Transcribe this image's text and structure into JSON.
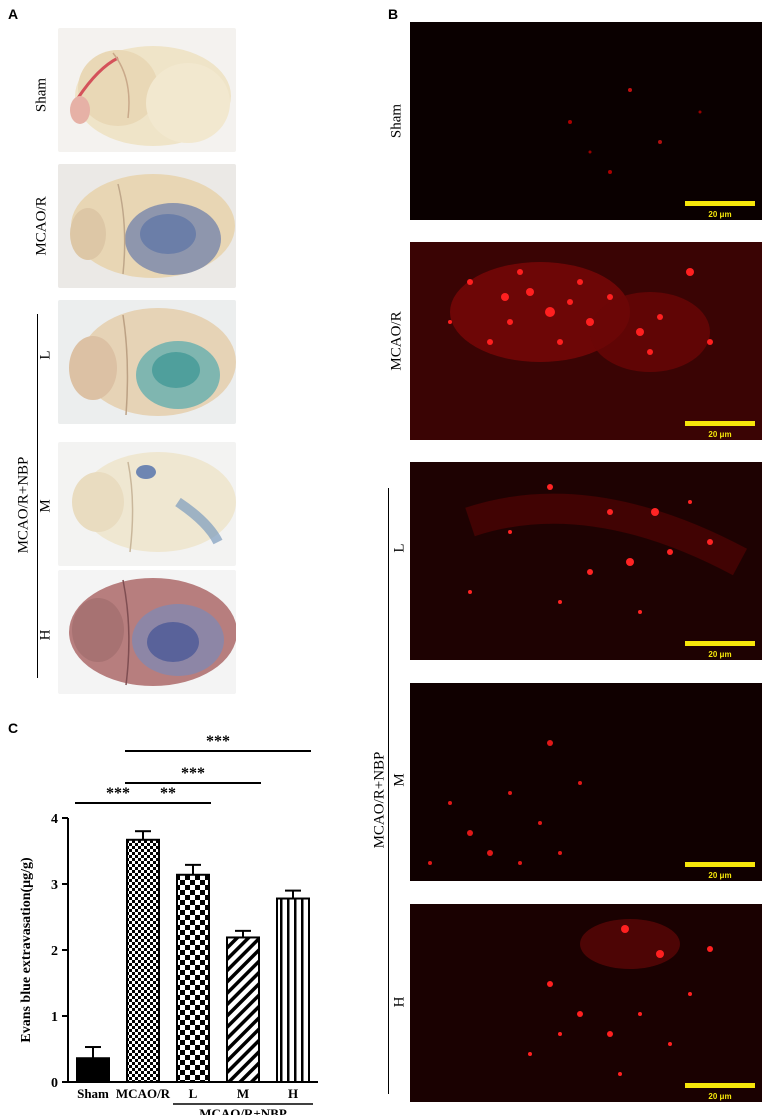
{
  "panels": {
    "a": "A",
    "b": "B",
    "c": "C"
  },
  "panel_a": {
    "rows": [
      "Sham",
      "MCAO/R",
      "L",
      "M",
      "H"
    ],
    "group_label": "MCAO/R+NBP"
  },
  "panel_b": {
    "rows": [
      "Sham",
      "MCAO/R",
      "L",
      "M",
      "H"
    ],
    "group_label": "MCAO/R+NBP",
    "scale_label": "20 μm"
  },
  "chart_data": {
    "type": "bar",
    "categories": [
      "Sham",
      "MCAO/R",
      "L",
      "M",
      "H"
    ],
    "group_label": "MCAO/R+NBP",
    "values": [
      0.36,
      3.67,
      3.14,
      2.19,
      2.78
    ],
    "errors": [
      0.17,
      0.13,
      0.15,
      0.1,
      0.12
    ],
    "ylabel": "Evans blue extravasation(μg/g)",
    "ylim": [
      0,
      4
    ],
    "yticks": [
      0,
      1,
      2,
      3,
      4
    ],
    "patterns": [
      "solid",
      "checker",
      "checker-large",
      "diagonal",
      "vertical"
    ],
    "significance": [
      {
        "from": 0,
        "to": 1,
        "label": "***"
      },
      {
        "from": 1,
        "to": 2,
        "label": "**"
      },
      {
        "from": 1,
        "to": 3,
        "label": "***"
      },
      {
        "from": 1,
        "to": 4,
        "label": "***"
      }
    ]
  }
}
